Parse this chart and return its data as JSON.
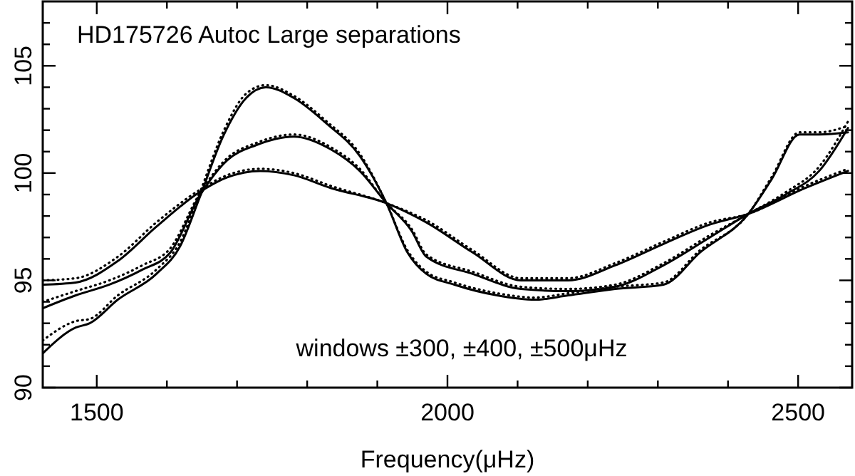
{
  "chart_data": {
    "type": "line",
    "title": "HD175726 Autoc Large separations",
    "xlabel": "Frequency(μHz)",
    "annotations": [
      "windows ±300, ±400, ±500μHz"
    ],
    "xlim": [
      1423,
      2577
    ],
    "ylim": [
      90,
      108
    ],
    "xticks": [
      {
        "value": 1500,
        "label": "1500"
      },
      {
        "value": 1600,
        "label": null
      },
      {
        "value": 1700,
        "label": null
      },
      {
        "value": 1800,
        "label": null
      },
      {
        "value": 1900,
        "label": null
      },
      {
        "value": 2000,
        "label": "2000"
      },
      {
        "value": 2100,
        "label": null
      },
      {
        "value": 2200,
        "label": null
      },
      {
        "value": 2300,
        "label": null
      },
      {
        "value": 2400,
        "label": null
      },
      {
        "value": 2500,
        "label": "2500"
      }
    ],
    "yticks": [
      90,
      {
        "value": 91,
        "label": null
      },
      {
        "value": 92,
        "label": null
      },
      {
        "value": 93,
        "label": null
      },
      {
        "value": 94,
        "label": null
      },
      95,
      {
        "value": 96,
        "label": null
      },
      {
        "value": 97,
        "label": null
      },
      {
        "value": 98,
        "label": null
      },
      {
        "value": 99,
        "label": null
      },
      100,
      {
        "value": 101,
        "label": null
      },
      {
        "value": 102,
        "label": null
      },
      {
        "value": 103,
        "label": null
      },
      {
        "value": 104,
        "label": null
      },
      105,
      {
        "value": 106,
        "label": null
      },
      {
        "value": 107,
        "label": null
      }
    ],
    "grid": false,
    "marker": "none",
    "series": [
      {
        "color": "#000000",
        "line_style": "solid",
        "x": [
          1423,
          1470,
          1490,
          1530,
          1585,
          1619,
          1646,
          1680,
          1713,
          1741,
          1781,
          1828,
          1875,
          1913,
          1943,
          1970,
          2010,
          2071,
          2125,
          2172,
          2239,
          2308,
          2360,
          2429,
          2462,
          2502,
          2530,
          2571
        ],
        "values": [
          91.6,
          92.8,
          93.0,
          94.1,
          95.3,
          96.6,
          98.8,
          101.7,
          103.5,
          104.0,
          103.5,
          102.3,
          100.8,
          98.6,
          96.3,
          95.3,
          94.8,
          94.3,
          94.1,
          94.3,
          94.6,
          94.8,
          96.3,
          98.1,
          99.7,
          101.8,
          101.8,
          101.9
        ]
      },
      {
        "color": "#000000",
        "line_style": "solid",
        "x": [
          1423,
          1470,
          1518,
          1565,
          1605,
          1646,
          1686,
          1727,
          1781,
          1834,
          1875,
          1913,
          1949,
          1970,
          2036,
          2105,
          2172,
          2239,
          2308,
          2374,
          2429,
          2482,
          2530,
          2571
        ],
        "values": [
          93.7,
          94.3,
          94.8,
          95.5,
          96.3,
          98.9,
          100.6,
          101.3,
          101.7,
          101.1,
          100.1,
          98.6,
          97.3,
          96.1,
          95.3,
          94.6,
          94.5,
          94.7,
          95.7,
          97.0,
          98.1,
          99.0,
          100.1,
          102.1
        ]
      },
      {
        "color": "#000000",
        "line_style": "solid",
        "x": [
          1423,
          1470,
          1530,
          1585,
          1646,
          1686,
          1733,
          1781,
          1834,
          1913,
          1970,
          2036,
          2105,
          2172,
          2239,
          2308,
          2374,
          2429,
          2510,
          2571
        ],
        "values": [
          94.8,
          94.9,
          95.9,
          97.5,
          99.1,
          99.8,
          100.1,
          99.9,
          99.3,
          98.6,
          97.7,
          96.3,
          95.0,
          95.0,
          95.7,
          96.7,
          97.6,
          98.1,
          99.3,
          100.1
        ]
      },
      {
        "color": "#000000",
        "line_style": "dotted",
        "x": [
          1423,
          1470,
          1490,
          1530,
          1585,
          1619,
          1646,
          1680,
          1713,
          1741,
          1781,
          1828,
          1875,
          1913,
          1943,
          1970,
          2010,
          2071,
          2125,
          2172,
          2239,
          2308,
          2360,
          2429,
          2462,
          2502,
          2530,
          2571
        ],
        "values": [
          92.2,
          93.1,
          93.2,
          94.3,
          95.5,
          96.8,
          99.0,
          101.9,
          103.7,
          104.1,
          103.6,
          102.4,
          100.9,
          98.6,
          96.4,
          95.4,
          94.9,
          94.4,
          94.2,
          94.4,
          94.7,
          94.9,
          96.4,
          98.1,
          99.8,
          101.9,
          101.9,
          102.2
        ]
      },
      {
        "color": "#000000",
        "line_style": "dotted",
        "x": [
          1423,
          1470,
          1518,
          1565,
          1605,
          1646,
          1686,
          1727,
          1781,
          1834,
          1875,
          1913,
          1949,
          1970,
          2036,
          2105,
          2172,
          2239,
          2308,
          2374,
          2429,
          2482,
          2530,
          2571
        ],
        "values": [
          94.0,
          94.5,
          95.0,
          95.7,
          96.5,
          99.0,
          100.7,
          101.4,
          101.8,
          101.2,
          100.2,
          98.6,
          97.4,
          96.2,
          95.4,
          94.7,
          94.6,
          94.8,
          95.8,
          97.1,
          98.1,
          99.1,
          100.3,
          102.4
        ]
      },
      {
        "color": "#000000",
        "line_style": "dotted",
        "x": [
          1423,
          1470,
          1530,
          1585,
          1646,
          1686,
          1733,
          1781,
          1834,
          1913,
          1970,
          2036,
          2105,
          2172,
          2239,
          2308,
          2374,
          2429,
          2510,
          2571
        ],
        "values": [
          95.0,
          95.1,
          96.1,
          97.7,
          99.2,
          99.9,
          100.2,
          100.0,
          99.4,
          98.6,
          97.8,
          96.4,
          95.1,
          95.1,
          95.8,
          96.8,
          97.7,
          98.1,
          99.4,
          100.2
        ]
      }
    ]
  }
}
